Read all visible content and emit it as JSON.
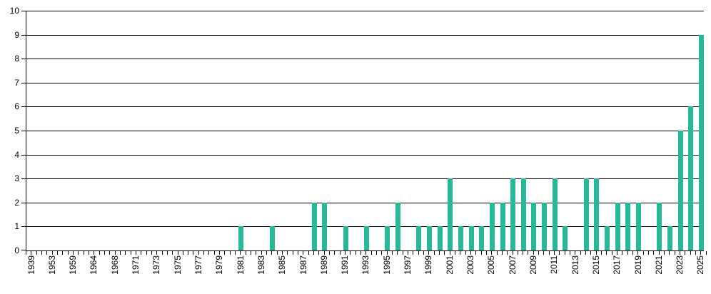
{
  "chart_data": {
    "type": "bar",
    "title": "",
    "xlabel": "",
    "ylabel": "",
    "ylim": [
      0,
      10
    ],
    "yticks": [
      0,
      1,
      2,
      3,
      4,
      5,
      6,
      7,
      8,
      9,
      10
    ],
    "grid": true,
    "legend": false,
    "bar_color": "#27b899",
    "axis_color": "#000000",
    "background_color": "#ffffff",
    "x_tick_label_rotation": 90,
    "categories": [
      "1939",
      "",
      "1953",
      "",
      "1959",
      "",
      "1964",
      "",
      "1968",
      "",
      "1971",
      "",
      "1973",
      "",
      "1975",
      "",
      "1977",
      "",
      "1979",
      "",
      "1981",
      "",
      "1983",
      "",
      "1985",
      "",
      "1987",
      "",
      "1989",
      "",
      "1991",
      "",
      "1993",
      "",
      "1995",
      "",
      "1997",
      "",
      "1999",
      "",
      "2001",
      "",
      "2003",
      "",
      "2005",
      "",
      "2007",
      "",
      "2009",
      "",
      "2011",
      "",
      "2013",
      "",
      "2015",
      "",
      "2017",
      "",
      "2019",
      "",
      "2021",
      "",
      "2023",
      "",
      "2025"
    ],
    "values": [
      0,
      0,
      0,
      0,
      0,
      0,
      0,
      0,
      0,
      0,
      0,
      0,
      0,
      0,
      0,
      0,
      0,
      0,
      0,
      0,
      1,
      0,
      0,
      1,
      0,
      0,
      0,
      2,
      2,
      0,
      1,
      0,
      1,
      0,
      1,
      2,
      0,
      1,
      1,
      1,
      3,
      1,
      1,
      1,
      2,
      2,
      3,
      3,
      2,
      2,
      3,
      1,
      0,
      3,
      3,
      1,
      2,
      2,
      2,
      0,
      2,
      1,
      5,
      6,
      9
    ]
  }
}
